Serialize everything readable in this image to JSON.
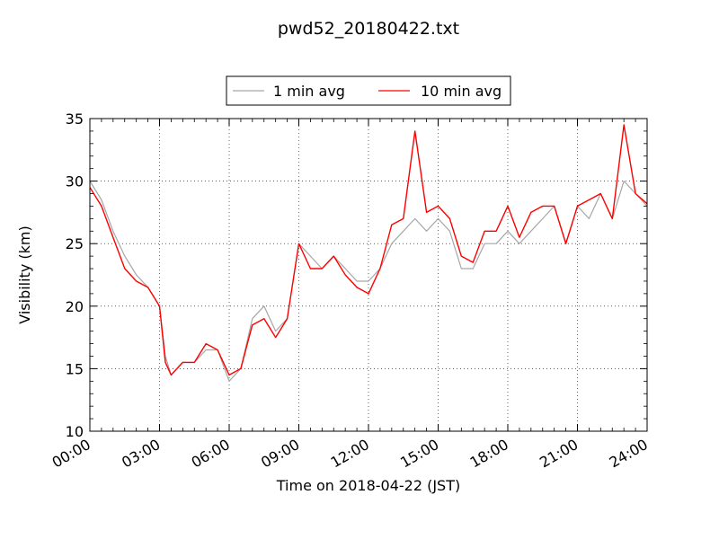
{
  "chart_data": {
    "type": "line",
    "title": "pwd52_20180422.txt",
    "xlabel": "Time on 2018-04-22 (JST)",
    "ylabel": "Visibility (km)",
    "xlim": [
      "00:00",
      "24:00"
    ],
    "ylim": [
      10,
      35
    ],
    "x_ticks": [
      "00:00",
      "03:00",
      "06:00",
      "09:00",
      "12:00",
      "15:00",
      "18:00",
      "21:00",
      "24:00"
    ],
    "y_ticks": [
      10,
      15,
      20,
      25,
      30,
      35
    ],
    "grid": true,
    "legend_position": "top-center",
    "series": [
      {
        "name": "1 min avg",
        "color": "#a6a6a6",
        "x": [
          "00:00",
          "00:30",
          "01:00",
          "01:30",
          "02:00",
          "02:30",
          "03:00",
          "03:15",
          "03:30",
          "04:00",
          "04:30",
          "05:00",
          "05:30",
          "06:00",
          "06:30",
          "07:00",
          "07:30",
          "08:00",
          "08:30",
          "09:00",
          "09:30",
          "10:00",
          "10:30",
          "11:00",
          "11:30",
          "12:00",
          "12:30",
          "13:00",
          "13:30",
          "14:00",
          "14:30",
          "15:00",
          "15:30",
          "16:00",
          "16:30",
          "17:00",
          "17:30",
          "18:00",
          "18:30",
          "19:00",
          "19:30",
          "20:00",
          "20:30",
          "21:00",
          "21:30",
          "22:00",
          "22:30",
          "23:00",
          "23:30",
          "24:00"
        ],
        "y": [
          30,
          28.5,
          26,
          24,
          22.5,
          21.5,
          20,
          16,
          14.5,
          15.5,
          15.5,
          16.5,
          16.5,
          14,
          15,
          19,
          20,
          18,
          19,
          25,
          24,
          23,
          24,
          23,
          22,
          22,
          23,
          25,
          26,
          27,
          26,
          27,
          26,
          23,
          23,
          25,
          25,
          26,
          25,
          26,
          27,
          28,
          25,
          28,
          27,
          29,
          27,
          30,
          29,
          28
        ]
      },
      {
        "name": "10 min avg",
        "color": "#ff0000",
        "x": [
          "00:00",
          "00:30",
          "01:00",
          "01:30",
          "02:00",
          "02:30",
          "03:00",
          "03:15",
          "03:30",
          "04:00",
          "04:30",
          "05:00",
          "05:30",
          "06:00",
          "06:30",
          "07:00",
          "07:30",
          "08:00",
          "08:30",
          "09:00",
          "09:30",
          "10:00",
          "10:30",
          "11:00",
          "11:30",
          "12:00",
          "12:30",
          "13:00",
          "13:30",
          "14:00",
          "14:30",
          "15:00",
          "15:30",
          "16:00",
          "16:30",
          "17:00",
          "17:30",
          "18:00",
          "18:30",
          "19:00",
          "19:30",
          "20:00",
          "20:30",
          "21:00",
          "21:30",
          "22:00",
          "22:30",
          "23:00",
          "23:30",
          "24:00"
        ],
        "y": [
          29.5,
          28,
          25.5,
          23,
          22,
          21.5,
          20,
          15.5,
          14.5,
          15.5,
          15.5,
          17,
          16.5,
          14.5,
          15,
          18.5,
          19,
          17.5,
          19,
          25,
          23,
          23,
          24,
          22.5,
          21.5,
          21,
          23,
          26.5,
          27,
          34,
          27.5,
          28,
          27,
          24,
          23.5,
          26,
          26,
          28,
          25.5,
          27.5,
          28,
          28,
          25,
          28,
          28.5,
          29,
          27,
          34.5,
          29,
          28.2
        ]
      }
    ]
  }
}
